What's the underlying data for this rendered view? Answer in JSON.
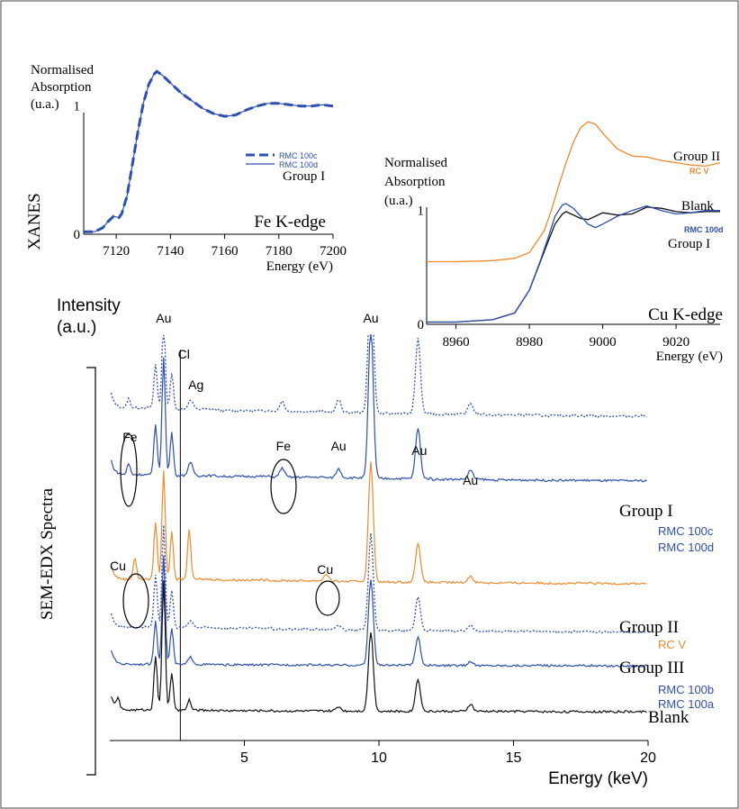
{
  "colors": {
    "blue": "#2f4fb0",
    "orange": "#ef8a2e",
    "black": "#111111",
    "light_blue": "#6f8fd0"
  },
  "chart_data": [
    {
      "id": "fe",
      "type": "line",
      "title": "Fe K-edge",
      "xlabel": "Energy (eV)",
      "ylabel": "Normalised\nAbsorption\n(u.a.)",
      "side_label": "XANES",
      "group_label": "Group I",
      "xlim": [
        7108,
        7200
      ],
      "ylim": [
        0,
        1.3
      ],
      "xticks": [
        "7120",
        "7140",
        "7160",
        "7180",
        "7200"
      ],
      "xtick_values": [
        7120,
        7140,
        7160,
        7180,
        7200
      ],
      "yticks": [
        "0",
        "1"
      ],
      "ytick_values": [
        0,
        1
      ],
      "legend_position": "right",
      "series": [
        {
          "name": "RMC 100c",
          "style": "dashed",
          "color": "#2f4fb0",
          "x": [
            7108,
            7112,
            7115,
            7117,
            7119,
            7121,
            7122,
            7124,
            7126,
            7128,
            7130,
            7132,
            7134,
            7135,
            7137,
            7139,
            7141,
            7144,
            7148,
            7152,
            7156,
            7160,
            7164,
            7168,
            7172,
            7176,
            7180,
            7184,
            7188,
            7192,
            7196,
            7200
          ],
          "y": [
            0.02,
            0.02,
            0.05,
            0.1,
            0.14,
            0.13,
            0.16,
            0.3,
            0.55,
            0.8,
            1.02,
            1.17,
            1.25,
            1.27,
            1.24,
            1.2,
            1.16,
            1.1,
            1.04,
            0.98,
            0.94,
            0.92,
            0.93,
            0.97,
            1.0,
            1.02,
            1.02,
            1.01,
            1.0,
            1.0,
            1.01,
            1.0
          ]
        },
        {
          "name": "RMC 100d",
          "style": "solid",
          "color": "#2f4fb0",
          "x": [
            7108,
            7112,
            7115,
            7117,
            7119,
            7121,
            7122,
            7124,
            7126,
            7128,
            7130,
            7132,
            7134,
            7135,
            7137,
            7139,
            7141,
            7144,
            7148,
            7152,
            7156,
            7160,
            7164,
            7168,
            7172,
            7176,
            7180,
            7184,
            7188,
            7192,
            7196,
            7200
          ],
          "y": [
            0.02,
            0.02,
            0.05,
            0.1,
            0.14,
            0.13,
            0.16,
            0.3,
            0.55,
            0.8,
            1.02,
            1.17,
            1.25,
            1.27,
            1.24,
            1.2,
            1.16,
            1.1,
            1.04,
            0.98,
            0.94,
            0.92,
            0.93,
            0.97,
            1.0,
            1.02,
            1.02,
            1.01,
            1.0,
            1.0,
            1.01,
            1.0
          ]
        }
      ]
    },
    {
      "id": "cu",
      "type": "line",
      "title": "Cu K-edge",
      "xlabel": "Energy (eV)",
      "ylabel": "Normalised\nAbsorption\n(u.a.)",
      "xlim": [
        8952,
        9032
      ],
      "ylim": [
        0,
        1.9
      ],
      "xticks": [
        "8960",
        "8980",
        "9000",
        "9020"
      ],
      "xtick_values": [
        8960,
        8980,
        9000,
        9020
      ],
      "yticks": [
        "0",
        "1"
      ],
      "ytick_values": [
        0,
        1
      ],
      "group_labels": [
        "Group II",
        "Blank",
        "Group I"
      ],
      "series": [
        {
          "name": "RC V",
          "color": "#ef8a2e",
          "x": [
            8952,
            8960,
            8970,
            8976,
            8980,
            8984,
            8986,
            8988,
            8990,
            8992,
            8994,
            8996,
            8998,
            9000,
            9004,
            9008,
            9012,
            9016,
            9020,
            9024,
            9028,
            9032
          ],
          "y": [
            0.55,
            0.55,
            0.56,
            0.58,
            0.63,
            0.82,
            1.0,
            1.22,
            1.42,
            1.6,
            1.73,
            1.78,
            1.76,
            1.68,
            1.54,
            1.48,
            1.47,
            1.44,
            1.42,
            1.4,
            1.39,
            1.42
          ]
        },
        {
          "name": "Blank",
          "color": "#111111",
          "x": [
            8952,
            8960,
            8970,
            8976,
            8980,
            8983,
            8985,
            8987,
            8989,
            8990,
            8992,
            8994,
            8996,
            8998,
            9000,
            9004,
            9008,
            9012,
            9016,
            9020,
            9024,
            9028,
            9032
          ],
          "y": [
            0.02,
            0.02,
            0.04,
            0.1,
            0.3,
            0.55,
            0.72,
            0.88,
            0.97,
            0.99,
            0.96,
            0.93,
            0.92,
            0.95,
            0.98,
            0.96,
            0.97,
            1.03,
            1.02,
            0.99,
            0.98,
            0.99,
            0.99
          ]
        },
        {
          "name": "RMC 100d",
          "color": "#2f4fb0",
          "x": [
            8952,
            8960,
            8970,
            8976,
            8980,
            8983,
            8985,
            8987,
            8989,
            8990,
            8992,
            8994,
            8996,
            8998,
            9000,
            9004,
            9008,
            9012,
            9016,
            9020,
            9024,
            9028,
            9032
          ],
          "y": [
            0.02,
            0.02,
            0.04,
            0.1,
            0.3,
            0.56,
            0.75,
            0.95,
            1.05,
            1.06,
            1.02,
            0.95,
            0.88,
            0.85,
            0.88,
            0.95,
            1.0,
            1.04,
            1.0,
            0.97,
            0.98,
            1.0,
            1.0
          ]
        }
      ]
    },
    {
      "id": "edx",
      "type": "line",
      "xlabel": "Energy (keV)",
      "ylabel": "Intensity\n(a.u.)",
      "side_label": "SEM-EDX Spectra",
      "xlim": [
        0,
        20
      ],
      "xticks": [
        "5",
        "10",
        "15",
        "20"
      ],
      "xtick_values": [
        5,
        10,
        15,
        20
      ],
      "vline_x": 2.62,
      "group_labels": [
        "Group I",
        "Group II",
        "Group III",
        "Blank"
      ],
      "element_labels": [
        {
          "text": "Au",
          "x": 2.0,
          "row": 0
        },
        {
          "text": "Cl",
          "x": 2.75,
          "row": 1
        },
        {
          "text": "Ag",
          "x": 3.2,
          "row": 2
        },
        {
          "text": "Au",
          "x": 9.7,
          "row": 0
        },
        {
          "text": "Au",
          "x": 11.5,
          "row": 3
        },
        {
          "text": "Au",
          "x": 8.5,
          "row": 4
        },
        {
          "text": "Au",
          "x": 13.4,
          "row": 5
        },
        {
          "text": "Fe",
          "x": 0.75,
          "row": 6
        },
        {
          "text": "Fe",
          "x": 6.45,
          "row": 4
        },
        {
          "text": "Cu",
          "x": 0.3,
          "row": 7
        },
        {
          "text": "Cu",
          "x": 8.0,
          "row": 8
        }
      ],
      "series": [
        {
          "name": "RMC 100c",
          "color": "#2f4fb0",
          "style": "dotted",
          "baseline": 0.6,
          "ybase": [
            0.46,
            0.42,
            0.38,
            0.36,
            0.33,
            0.3,
            0.28,
            0.26,
            0.24,
            0.23
          ],
          "peaks": [
            [
              0.7,
              0.25
            ],
            [
              1.7,
              1.2
            ],
            [
              2.0,
              2.5
            ],
            [
              2.3,
              1.0
            ],
            [
              3.0,
              0.25
            ],
            [
              6.4,
              0.28
            ],
            [
              8.5,
              0.35
            ],
            [
              9.7,
              4.6
            ],
            [
              11.45,
              2.1
            ],
            [
              13.4,
              0.32
            ]
          ]
        },
        {
          "name": "RMC 100d",
          "color": "#2f4fb0",
          "style": "solid",
          "baseline": 0.0,
          "ybase": [
            0.33,
            0.3,
            0.28,
            0.26,
            0.24,
            0.22,
            0.2,
            0.18,
            0.17,
            0.16
          ],
          "peaks": [
            [
              0.7,
              0.3
            ],
            [
              1.7,
              1.4
            ],
            [
              2.0,
              3.3
            ],
            [
              2.3,
              1.2
            ],
            [
              3.0,
              0.35
            ],
            [
              6.4,
              0.25
            ],
            [
              8.5,
              0.25
            ],
            [
              9.7,
              4.3
            ],
            [
              11.45,
              1.4
            ],
            [
              13.4,
              0.25
            ]
          ]
        },
        {
          "name": "RC V",
          "color": "#ef8a2e",
          "style": "solid",
          "baseline": 0.0,
          "ybase": [
            0.3,
            0.3,
            0.28,
            0.26,
            0.24,
            0.22,
            0.21,
            0.2,
            0.19,
            0.18
          ],
          "peaks": [
            [
              0.93,
              0.6
            ],
            [
              1.7,
              1.6
            ],
            [
              2.0,
              3.0
            ],
            [
              2.3,
              1.3
            ],
            [
              2.95,
              1.4
            ],
            [
              8.05,
              0.2
            ],
            [
              9.7,
              3.3
            ],
            [
              11.45,
              1.1
            ],
            [
              13.4,
              0.18
            ]
          ]
        },
        {
          "name": "RMC 100b",
          "color": "#2f4fb0",
          "style": "dotted",
          "baseline": 0.0,
          "ybase": [
            0.32,
            0.3,
            0.28,
            0.25,
            0.23,
            0.21,
            0.2,
            0.19,
            0.18,
            0.17
          ],
          "peaks": [
            [
              1.7,
              1.5
            ],
            [
              2.0,
              3.0
            ],
            [
              2.3,
              1.1
            ],
            [
              3.0,
              0.2
            ],
            [
              8.5,
              0.15
            ],
            [
              9.7,
              2.8
            ],
            [
              11.45,
              1.0
            ],
            [
              13.4,
              0.16
            ]
          ]
        },
        {
          "name": "RMC 100a",
          "color": "#2f4fb0",
          "style": "solid",
          "baseline": 0.0,
          "ybase": [
            0.12,
            0.11,
            0.1,
            0.1,
            0.09,
            0.09,
            0.08,
            0.08,
            0.08,
            0.07
          ],
          "peaks": [
            [
              1.7,
              1.2
            ],
            [
              2.0,
              3.0
            ],
            [
              2.3,
              1.0
            ],
            [
              3.0,
              0.2
            ],
            [
              9.7,
              2.4
            ],
            [
              11.45,
              0.8
            ],
            [
              13.4,
              0.12
            ]
          ]
        },
        {
          "name": "Blank",
          "color": "#111111",
          "style": "solid",
          "baseline": 0.0,
          "ybase": [
            0.1,
            0.09,
            0.08,
            0.07,
            0.07,
            0.06,
            0.06,
            0.06,
            0.05,
            0.05
          ],
          "peaks": [
            [
              0.3,
              0.3
            ],
            [
              1.7,
              1.5
            ],
            [
              2.0,
              3.6
            ],
            [
              2.3,
              1.0
            ],
            [
              2.95,
              0.3
            ],
            [
              8.5,
              0.12
            ],
            [
              9.7,
              2.2
            ],
            [
              11.45,
              0.9
            ],
            [
              13.4,
              0.2
            ]
          ]
        }
      ]
    }
  ]
}
